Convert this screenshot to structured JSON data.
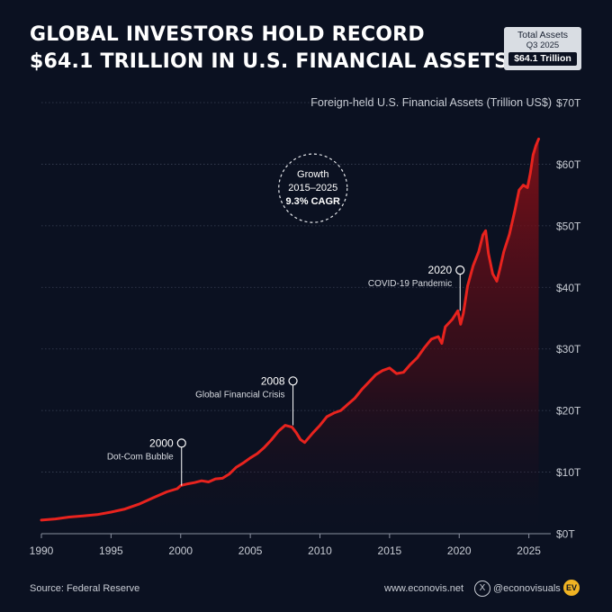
{
  "header": {
    "title_line1": "GLOBAL INVESTORS HOLD RECORD",
    "title_line2": "$64.1 TRILLION IN U.S. FINANCIAL ASSETS"
  },
  "badge": {
    "title": "Total Assets",
    "period": "Q3 2025",
    "value": "$64.1 Trillion"
  },
  "footer": {
    "source": "Source: Federal Reserve",
    "website": "www.econovis.net",
    "x_icon": "X",
    "handle": "@econovisuals",
    "logo": "EV"
  },
  "colors": {
    "background": "#0b1121",
    "line": "#e8231e",
    "grid": "#3a4256",
    "text": "#ffffff",
    "muted": "#c8ccd4"
  },
  "chart_data": {
    "type": "area",
    "title": "Foreign-held U.S. Financial Assets (Trillion US$)",
    "xlabel": "",
    "ylabel": "Foreign-held U.S. Financial Assets (Trillion US$)",
    "xlim": [
      1990,
      2025.8
    ],
    "ylim": [
      0,
      70
    ],
    "x_ticks": [
      1990,
      1995,
      2000,
      2005,
      2010,
      2015,
      2020,
      2025
    ],
    "y_ticks": [
      {
        "value": 0,
        "label": "$0T"
      },
      {
        "value": 10,
        "label": "$10T"
      },
      {
        "value": 20,
        "label": "$20T"
      },
      {
        "value": 30,
        "label": "$30T"
      },
      {
        "value": 40,
        "label": "$40T"
      },
      {
        "value": 50,
        "label": "$50T"
      },
      {
        "value": 60,
        "label": "$60T"
      },
      {
        "value": 70,
        "label": "$70T"
      }
    ],
    "grid": "horizontal-dotted",
    "series": [
      {
        "name": "Foreign-held U.S. Financial Assets",
        "x": [
          1990,
          1991,
          1992,
          1993,
          1994,
          1995,
          1996,
          1997,
          1998,
          1999,
          1999.75,
          2000,
          2000.5,
          2001,
          2001.5,
          2002,
          2002.5,
          2003,
          2003.5,
          2004,
          2004.5,
          2005,
          2005.5,
          2006,
          2006.5,
          2007,
          2007.5,
          2008,
          2008.3,
          2008.6,
          2008.9,
          2009.2,
          2009.5,
          2010,
          2010.5,
          2011,
          2011.5,
          2012,
          2012.5,
          2013,
          2013.5,
          2014,
          2014.5,
          2015,
          2015.5,
          2016,
          2016.5,
          2017,
          2017.5,
          2018,
          2018.5,
          2018.75,
          2019,
          2019.5,
          2019.9,
          2020.1,
          2020.3,
          2020.6,
          2021,
          2021.4,
          2021.7,
          2021.9,
          2022.1,
          2022.4,
          2022.7,
          2022.9,
          2023.2,
          2023.6,
          2024,
          2024.3,
          2024.6,
          2024.9,
          2025.1,
          2025.3,
          2025.5,
          2025.7
        ],
        "values": [
          2.2,
          2.4,
          2.7,
          2.9,
          3.1,
          3.5,
          4.0,
          4.8,
          5.8,
          6.8,
          7.3,
          7.8,
          8.1,
          8.3,
          8.6,
          8.4,
          8.9,
          9.0,
          9.7,
          10.8,
          11.5,
          12.3,
          13.0,
          14.0,
          15.2,
          16.6,
          17.6,
          17.3,
          16.4,
          15.3,
          14.8,
          15.6,
          16.4,
          17.6,
          19.0,
          19.6,
          20.0,
          21.0,
          22.0,
          23.4,
          24.6,
          25.8,
          26.5,
          26.9,
          26.0,
          26.2,
          27.5,
          28.6,
          30.2,
          31.6,
          32.0,
          30.9,
          33.6,
          34.8,
          36.2,
          34.0,
          35.8,
          40.2,
          43.5,
          45.8,
          48.5,
          49.2,
          45.5,
          42.2,
          41.0,
          42.8,
          45.8,
          48.6,
          52.5,
          55.8,
          56.6,
          56.2,
          58.5,
          61.5,
          63.0,
          64.1
        ]
      }
    ],
    "annotations": [
      {
        "x": 2000,
        "y": 7.8,
        "label_top": "2000",
        "label_bottom": "Dot-Com Bubble",
        "label_y": 14.7
      },
      {
        "x": 2008,
        "y": 17.6,
        "label_top": "2008",
        "label_bottom": "Global Financial Crisis",
        "label_y": 24.8
      },
      {
        "x": 2020,
        "y": 36.2,
        "label_top": "2020",
        "label_bottom": "COVID-19 Pandemic",
        "label_y": 42.8
      }
    ],
    "callout": {
      "line1": "Growth",
      "line2": "2015–2025",
      "line3": "9.3% CAGR",
      "x": 2009.5,
      "y": 56.1
    }
  }
}
